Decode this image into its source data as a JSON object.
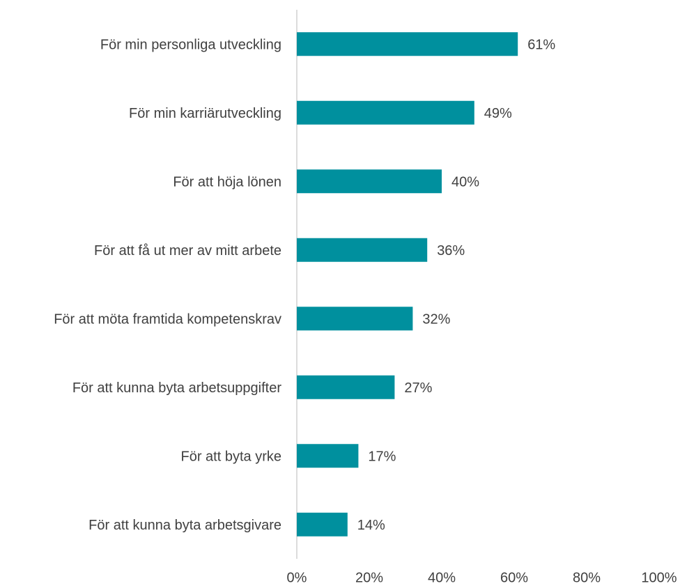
{
  "chart_data": {
    "type": "bar",
    "orientation": "horizontal",
    "categories": [
      "För min personliga utveckling",
      "För min karriärutveckling",
      "För att höja lönen",
      "För att få ut mer av mitt arbete",
      "För att möta framtida kompetenskrav",
      "För att kunna byta arbetsuppgifter",
      "För att byta yrke",
      "För att kunna byta arbetsgivare"
    ],
    "values": [
      61,
      49,
      40,
      36,
      32,
      27,
      17,
      14
    ],
    "value_labels": [
      "61%",
      "49%",
      "40%",
      "36%",
      "32%",
      "27%",
      "17%",
      "14%"
    ],
    "color": "#00909e",
    "xlim": [
      0,
      100
    ],
    "xticks": [
      {
        "value": 0,
        "label": "0%"
      },
      {
        "value": 20,
        "label": "20%"
      },
      {
        "value": 40,
        "label": "40%"
      },
      {
        "value": 60,
        "label": "60%"
      },
      {
        "value": 80,
        "label": "80%"
      },
      {
        "value": 100,
        "label": "100%"
      }
    ],
    "grid": false
  }
}
